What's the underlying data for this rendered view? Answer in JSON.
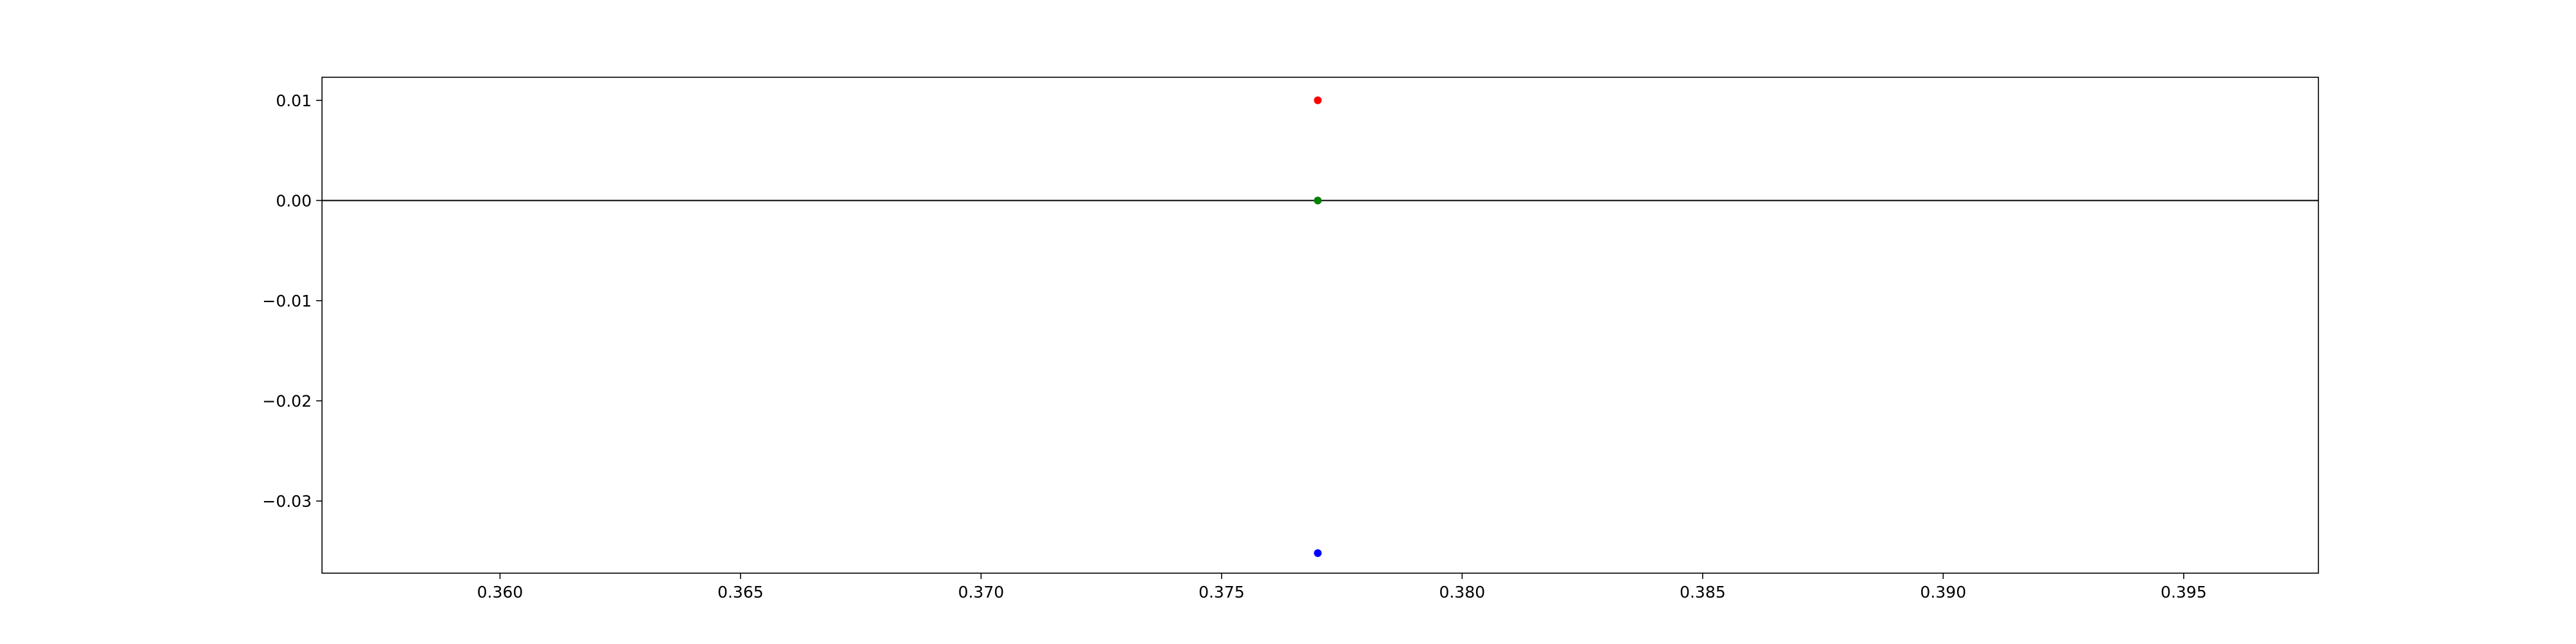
{
  "chart_data": {
    "type": "scatter",
    "title": "",
    "xlabel": "",
    "ylabel": "",
    "xlim": [
      0.3563,
      0.3978
    ],
    "ylim": [
      -0.0372,
      0.0123
    ],
    "xticks": [
      0.36,
      0.365,
      0.37,
      0.375,
      0.38,
      0.385,
      0.39,
      0.395
    ],
    "xtick_labels": [
      "0.360",
      "0.365",
      "0.370",
      "0.375",
      "0.380",
      "0.385",
      "0.390",
      "0.395"
    ],
    "yticks": [
      0.01,
      0.0,
      -0.01,
      -0.02,
      -0.03
    ],
    "ytick_labels": [
      "0.01",
      "0.00",
      "−0.01",
      "−0.02",
      "−0.03"
    ],
    "hline": {
      "y": 0.0,
      "color": "#000000"
    },
    "grid": false,
    "legend": "none",
    "series": [
      {
        "color": "#ff0000",
        "points": [
          {
            "x": 0.377,
            "y": 0.01
          }
        ]
      },
      {
        "color": "#008000",
        "points": [
          {
            "x": 0.377,
            "y": 0.0
          }
        ]
      },
      {
        "color": "#0000ff",
        "points": [
          {
            "x": 0.377,
            "y": -0.0352
          }
        ]
      }
    ]
  }
}
